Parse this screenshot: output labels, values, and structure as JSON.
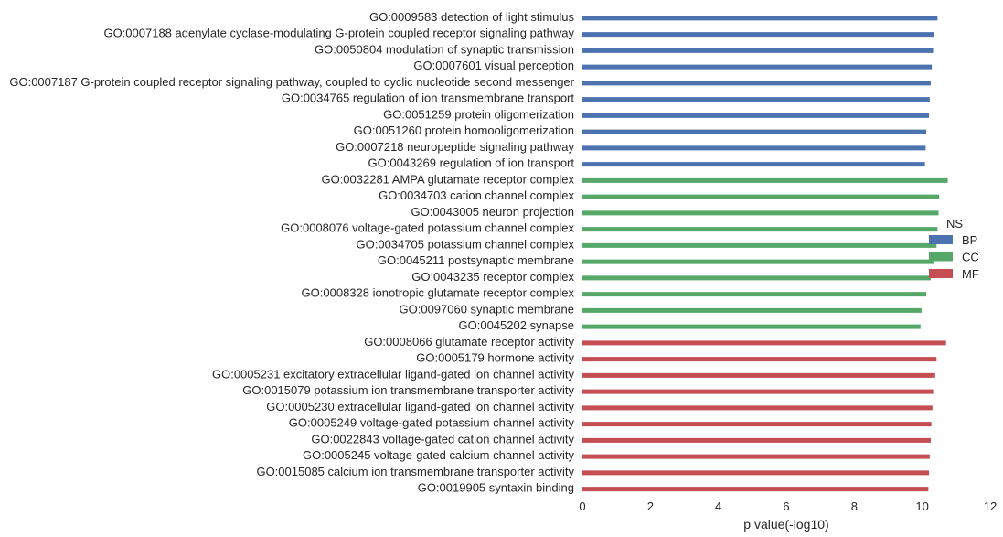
{
  "chart_data": {
    "type": "bar",
    "orientation": "horizontal",
    "xlabel": "p value(-log10)",
    "xlim": [
      0,
      12
    ],
    "xticks": [
      0,
      2,
      4,
      6,
      8,
      10,
      12
    ],
    "grid": false,
    "legend": {
      "title": "NS",
      "placement": "right",
      "entries": [
        {
          "label": "BP",
          "color": "#4c72b0"
        },
        {
          "label": "CC",
          "color": "#55a868"
        },
        {
          "label": "MF",
          "color": "#c44e52"
        }
      ]
    },
    "categories": [
      "GO:0009583 detection of light stimulus",
      "GO:0007188 adenylate cyclase-modulating G-protein coupled receptor signaling pathway",
      "GO:0050804 modulation of synaptic transmission",
      "GO:0007601 visual perception",
      "GO:0007187 G-protein coupled receptor signaling pathway, coupled to cyclic nucleotide second messenger",
      "GO:0034765 regulation of ion transmembrane transport",
      "GO:0051259 protein oligomerization",
      "GO:0051260 protein homooligomerization",
      "GO:0007218 neuropeptide signaling pathway",
      "GO:0043269 regulation of ion transport",
      "GO:0032281 AMPA glutamate receptor complex",
      "GO:0034703 cation channel complex",
      "GO:0043005 neuron projection",
      "GO:0008076 voltage-gated potassium channel complex",
      "GO:0034705 potassium channel complex",
      "GO:0045211 postsynaptic membrane",
      "GO:0043235 receptor complex",
      "GO:0008328 ionotropic glutamate receptor complex",
      "GO:0097060 synaptic membrane",
      "GO:0045202 synapse",
      "GO:0008066 glutamate receptor activity",
      "GO:0005179 hormone activity",
      "GO:0005231 excitatory extracellular ligand-gated ion channel activity",
      "GO:0015079 potassium ion transmembrane transporter activity",
      "GO:0005230 extracellular ligand-gated ion channel activity",
      "GO:0005249 voltage-gated potassium channel activity",
      "GO:0022843 voltage-gated cation channel activity",
      "GO:0005245 voltage-gated calcium channel activity",
      "GO:0015085 calcium ion transmembrane transporter activity",
      "GO:0019905 syntaxin binding"
    ],
    "groups": [
      "BP",
      "BP",
      "BP",
      "BP",
      "BP",
      "BP",
      "BP",
      "BP",
      "BP",
      "BP",
      "CC",
      "CC",
      "CC",
      "CC",
      "CC",
      "CC",
      "CC",
      "CC",
      "CC",
      "CC",
      "MF",
      "MF",
      "MF",
      "MF",
      "MF",
      "MF",
      "MF",
      "MF",
      "MF",
      "MF"
    ],
    "values": [
      10.45,
      10.35,
      10.32,
      10.28,
      10.25,
      10.22,
      10.2,
      10.12,
      10.1,
      10.08,
      10.75,
      10.5,
      10.48,
      10.45,
      10.42,
      10.35,
      10.25,
      10.12,
      9.98,
      9.95,
      10.7,
      10.42,
      10.38,
      10.32,
      10.3,
      10.27,
      10.25,
      10.22,
      10.2,
      10.18
    ]
  }
}
